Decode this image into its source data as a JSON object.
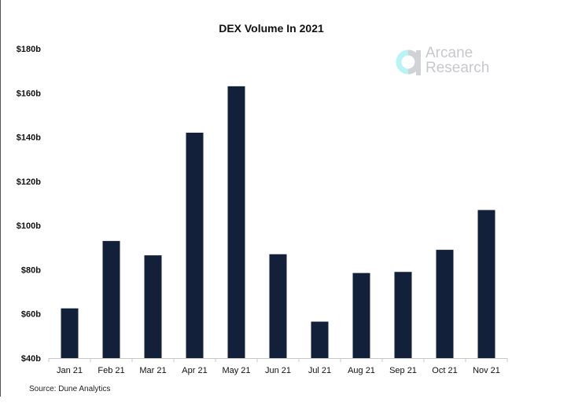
{
  "chart_data": {
    "type": "bar",
    "title": "DEX Volume In 2021",
    "xlabel": "",
    "ylabel": "",
    "categories": [
      "Jan 21",
      "Feb 21",
      "Mar 21",
      "Apr 21",
      "May 21",
      "Jun 21",
      "Jul 21",
      "Aug 21",
      "Sep 21",
      "Oct 21",
      "Nov 21"
    ],
    "values": [
      62.5,
      93,
      86.5,
      142,
      163,
      87,
      56.5,
      78.5,
      79,
      89,
      107
    ],
    "ylim": [
      40,
      180
    ],
    "yticks": [
      "$40b",
      "$60b",
      "$80b",
      "$100b",
      "$120b",
      "$140b",
      "$160b",
      "$180b"
    ],
    "ytick_values": [
      40,
      60,
      80,
      100,
      120,
      140,
      160,
      180
    ],
    "grid": false,
    "bar_color": "#13203a",
    "source": "Source: Dune Analytics"
  },
  "logo": {
    "line1": "Arcane",
    "line2": "Research"
  }
}
